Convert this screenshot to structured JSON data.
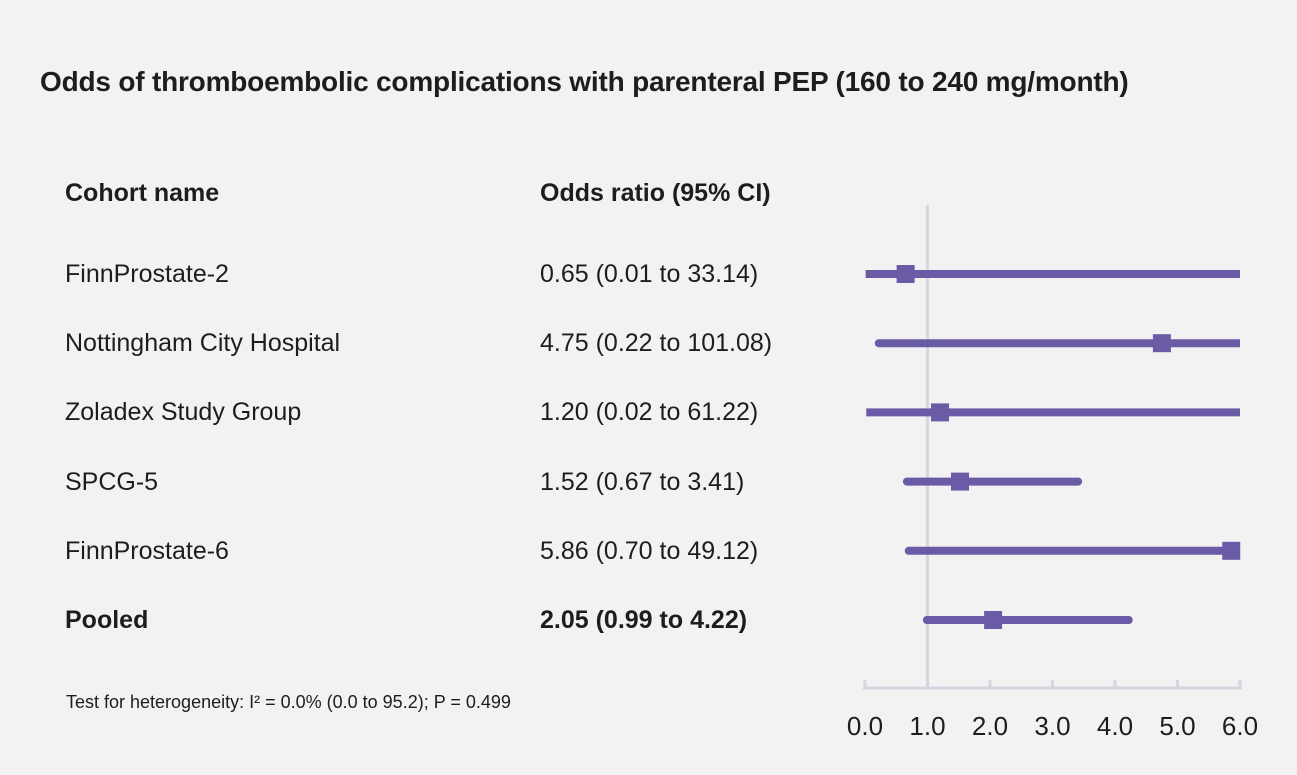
{
  "title": "Odds of thromboembolic complications with parenteral PEP (160 to 240 mg/month)",
  "table": {
    "col_cohort": "Cohort name",
    "col_or": "Odds ratio (95% CI)"
  },
  "footnote": "Test for heterogeneity: I² = 0.0% (0.0 to 95.2); P = 0.499",
  "colors": {
    "purple": "#6b5ba6",
    "axis_gray": "#d3d8e0",
    "text": "#1d1d1b",
    "background": "#f2f2f2"
  },
  "chart_data": {
    "type": "forest",
    "title": "Odds of thromboembolic complications with parenteral PEP (160 to 240 mg/month)",
    "xlabel": "Odds ratio",
    "xlim": [
      0,
      6
    ],
    "x_ticks": [
      0,
      1,
      2,
      3,
      4,
      5,
      6
    ],
    "x_tick_labels": [
      "0.0",
      "1.0",
      "2.0",
      "3.0",
      "4.0",
      "5.0",
      "6.0"
    ],
    "reference_line": 1.0,
    "rows": [
      {
        "label": "FinnProstate-2",
        "or_text": "0.65 (0.01 to 33.14)",
        "or": 0.65,
        "lo": 0.01,
        "hi": 33.14,
        "bold": false
      },
      {
        "label": "Nottingham City Hospital",
        "or_text": "4.75 (0.22 to 101.08)",
        "or": 4.75,
        "lo": 0.22,
        "hi": 101.08,
        "bold": false
      },
      {
        "label": "Zoladex Study Group",
        "or_text": "1.20 (0.02 to 61.22)",
        "or": 1.2,
        "lo": 0.02,
        "hi": 61.22,
        "bold": false
      },
      {
        "label": "SPCG-5",
        "or_text": "1.52 (0.67 to 3.41)",
        "or": 1.52,
        "lo": 0.67,
        "hi": 3.41,
        "bold": false
      },
      {
        "label": "FinnProstate-6",
        "or_text": "5.86 (0.70 to 49.12)",
        "or": 5.86,
        "lo": 0.7,
        "hi": 49.12,
        "bold": false
      },
      {
        "label": "Pooled",
        "or_text": "2.05 (0.99 to 4.22)",
        "or": 2.05,
        "lo": 0.99,
        "hi": 4.22,
        "bold": true
      }
    ]
  }
}
